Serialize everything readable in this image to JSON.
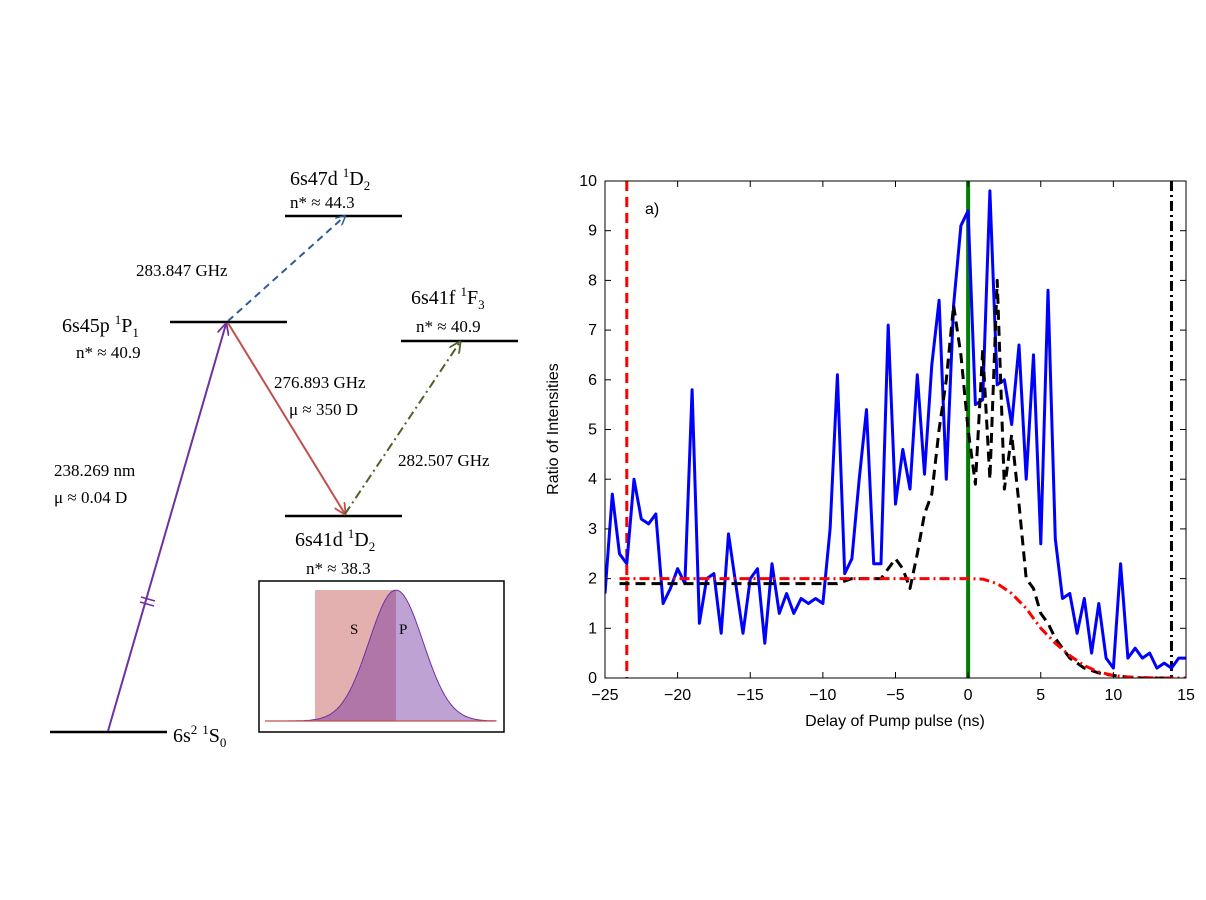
{
  "diagram": {
    "levels": [
      {
        "id": "6s47d",
        "term": "6s47d",
        "sup": "1",
        "letter": "D",
        "sub": "2",
        "nstar": "n* ≈ 44.3"
      },
      {
        "id": "6s45p",
        "term": "6s45p",
        "sup": "1",
        "letter": "P",
        "sub": "1",
        "nstar": "n* ≈ 40.9"
      },
      {
        "id": "6s41f",
        "term": "6s41f",
        "sup": "1",
        "letter": "F",
        "sub": "3",
        "nstar": "n* ≈ 40.9"
      },
      {
        "id": "6s41d",
        "term": "6s41d",
        "sup": "1",
        "letter": "D",
        "sub": "2",
        "nstar": "n* ≈ 38.3"
      },
      {
        "id": "6s2",
        "term": "6s",
        "term_sup": "2",
        "sup": "1",
        "letter": "S",
        "sub": "0",
        "nstar": ""
      }
    ],
    "transitions": {
      "t_47d": {
        "label": "283.847  GHz",
        "color": "#2e5a9a"
      },
      "t_41d": {
        "label": "276.893  GHz",
        "dipole": "μ ≈ 350 D",
        "color": "#c0504d"
      },
      "t_41f": {
        "label": "282.507  GHz",
        "color": "#4f6228"
      },
      "t_uv": {
        "label": "238.269  nm",
        "dipole": "μ ≈ 0.04 D",
        "color": "#7030a0"
      }
    },
    "inset": {
      "s_label": "S",
      "p_label": "P",
      "s_color": "#c0504d",
      "p_color": "#7030a0"
    }
  },
  "chart_data": {
    "type": "line",
    "annotation": "a)",
    "xlabel": "Delay of Pump pulse (ns)",
    "ylabel": "Ratio of Intensities",
    "xlim": [
      -25,
      15
    ],
    "ylim": [
      0,
      10
    ],
    "xticks": [
      -25,
      -20,
      -15,
      -10,
      -5,
      0,
      5,
      10,
      15
    ],
    "yticks": [
      0,
      1,
      2,
      3,
      4,
      5,
      6,
      7,
      8,
      9,
      10
    ],
    "grid": false,
    "series": [
      {
        "style": "solid",
        "color": "#0000ff",
        "x": [
          -25,
          -24.5,
          -24,
          -23.5,
          -23,
          -22.5,
          -22,
          -21.5,
          -21,
          -20.5,
          -20,
          -19.5,
          -19,
          -18.5,
          -18,
          -17.5,
          -17,
          -16.5,
          -16,
          -15.5,
          -15,
          -14.5,
          -14,
          -13.5,
          -13,
          -12.5,
          -12,
          -11.5,
          -11,
          -10.5,
          -10,
          -9.5,
          -9,
          -8.5,
          -8,
          -7.5,
          -7,
          -6.5,
          -6,
          -5.5,
          -5,
          -4.5,
          -4,
          -3.5,
          -3,
          -2.5,
          -2,
          -1.5,
          -1,
          -0.5,
          0,
          0.5,
          1,
          1.5,
          2,
          2.5,
          3,
          3.5,
          4,
          4.5,
          5,
          5.5,
          6,
          6.5,
          7,
          7.5,
          8,
          8.5,
          9,
          9.5,
          10,
          10.5,
          11,
          11.5,
          12,
          12.5,
          13,
          13.5,
          14,
          14.5,
          15
        ],
        "y": [
          1.7,
          3.7,
          2.5,
          2.3,
          4.0,
          3.2,
          3.1,
          3.3,
          1.5,
          1.8,
          2.2,
          1.9,
          5.8,
          1.1,
          2.0,
          2.1,
          0.9,
          2.9,
          1.9,
          0.9,
          2.0,
          2.2,
          0.7,
          2.3,
          1.3,
          1.7,
          1.3,
          1.6,
          1.5,
          1.6,
          1.5,
          3.0,
          6.1,
          2.1,
          2.4,
          4.0,
          5.4,
          2.3,
          2.3,
          7.1,
          3.5,
          4.6,
          3.8,
          6.1,
          4.1,
          6.3,
          7.6,
          4.0,
          7.5,
          9.1,
          9.4,
          5.5,
          5.6,
          9.8,
          5.9,
          6.0,
          5.1,
          6.7,
          4.0,
          6.5,
          2.7,
          7.8,
          2.8,
          1.6,
          1.7,
          0.9,
          1.6,
          0.5,
          1.5,
          0.4,
          0.2,
          2.3,
          0.4,
          0.6,
          0.4,
          0.5,
          0.2,
          0.3,
          0.2,
          0.4,
          0.4
        ]
      },
      {
        "style": "dashed",
        "color": "#000000",
        "x": [
          -24,
          -22,
          -20,
          -18,
          -16,
          -14,
          -12,
          -10,
          -9,
          -8,
          -7,
          -6,
          -5,
          -4.5,
          -4,
          -3.5,
          -3,
          -2.5,
          -2,
          -1.5,
          -1,
          -0.5,
          0,
          0.5,
          1,
          1.5,
          2,
          2.5,
          3,
          3.5,
          4,
          4.5,
          5,
          5.5,
          6,
          6.5,
          7,
          7.5,
          8,
          9,
          10,
          11,
          12,
          13,
          14
        ],
        "y": [
          1.9,
          1.9,
          1.9,
          1.9,
          1.9,
          1.9,
          1.9,
          1.9,
          1.9,
          2.0,
          2.0,
          2.0,
          2.4,
          2.2,
          1.8,
          2.5,
          3.3,
          3.7,
          5.0,
          6.0,
          7.5,
          6.5,
          5.0,
          3.9,
          6.6,
          4.0,
          8.0,
          3.8,
          4.9,
          3.5,
          2.0,
          1.8,
          1.3,
          1.1,
          0.8,
          0.6,
          0.4,
          0.3,
          0.2,
          0.1,
          0.05,
          0.02,
          0.0,
          0.0,
          0.0
        ]
      },
      {
        "style": "dash-dot",
        "color": "#ff0000",
        "x": [
          -24,
          -20,
          -15,
          -10,
          -5,
          -2,
          0,
          1,
          2,
          3,
          4,
          5,
          6,
          7,
          8,
          9,
          10,
          11,
          12,
          13,
          14,
          15
        ],
        "y": [
          2.0,
          2.0,
          2.0,
          2.0,
          2.0,
          2.0,
          2.0,
          1.99,
          1.9,
          1.7,
          1.4,
          1.0,
          0.7,
          0.45,
          0.25,
          0.12,
          0.05,
          0.02,
          0.01,
          0.0,
          0.0,
          0.0
        ]
      }
    ],
    "vlines": [
      {
        "x": -23.5,
        "style": "dashed",
        "color": "#ff0000"
      },
      {
        "x": 0,
        "style": "solid",
        "color": "#008000"
      },
      {
        "x": 14,
        "style": "dash-dot",
        "color": "#000000"
      }
    ]
  }
}
